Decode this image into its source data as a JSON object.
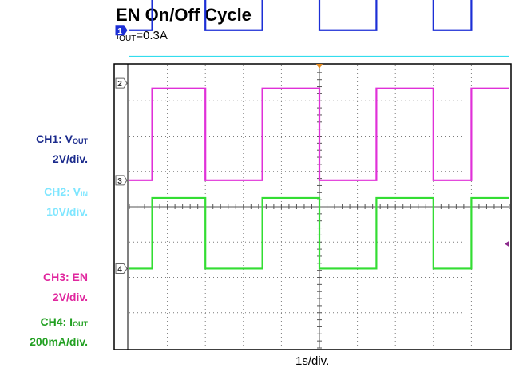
{
  "title": "EN On/Off Cycle",
  "subtitle": {
    "prefix": "I",
    "sub": "OUT",
    "suffix": "=0.3A"
  },
  "chart_data": {
    "type": "line",
    "title": "EN On/Off Cycle",
    "subtitle": "IOUT=0.3A",
    "xlabel": "1s/div.",
    "x_divisions": 10,
    "y_divisions": 8,
    "grid": true,
    "series": [
      {
        "name": "CH1: VOUT",
        "channel_marker": "1",
        "scale": "2V/div.",
        "color": "#1c2fd6",
        "low_div": 5.0,
        "high_div": 6.5,
        "transitions_div": [
          0.6,
          2.0,
          3.5,
          5.0,
          6.5,
          8.0,
          9.0
        ]
      },
      {
        "name": "CH2: VIN",
        "channel_marker": "2",
        "scale": "10V/div.",
        "color": "#33ddee",
        "level_div": 4.25
      },
      {
        "name": "CH3: EN",
        "channel_marker": "3",
        "scale": "2V/div.",
        "color": "#e030d8",
        "low_div": 0.75,
        "high_div": 3.35,
        "transitions_div": [
          0.6,
          2.0,
          3.5,
          5.0,
          6.5,
          8.0,
          9.0
        ]
      },
      {
        "name": "CH4: IOUT",
        "channel_marker": "4",
        "scale": "200mA/div.",
        "color": "#33dd33",
        "low_div": -1.75,
        "high_div": 0.25,
        "transitions_div": [
          0.6,
          2.0,
          3.5,
          5.0,
          6.5,
          8.0,
          9.0
        ]
      }
    ]
  },
  "labels": {
    "ch1_name": "CH1: V",
    "ch1_sub": "OUT",
    "ch1_scale": "2V/div.",
    "ch2_name": "CH2: V",
    "ch2_sub": "IN",
    "ch2_scale": "10V/div.",
    "ch3_name": "CH3: EN",
    "ch3_scale": "2V/div.",
    "ch4_name": "CH4: I",
    "ch4_sub": "OUT",
    "ch4_scale": "200mA/div."
  },
  "markers": {
    "m1": "1",
    "m2": "2",
    "m3": "3",
    "m4": "4"
  }
}
